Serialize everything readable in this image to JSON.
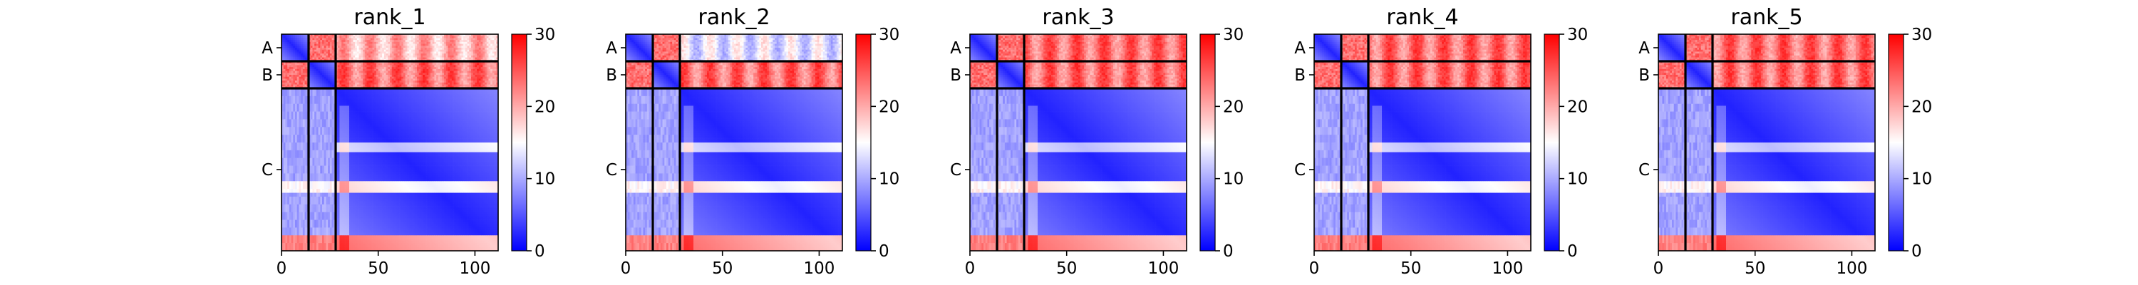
{
  "chart_data": [
    {
      "type": "heatmap",
      "title": "rank_1",
      "xlabel": "",
      "ylabel": "",
      "xlim": [
        0,
        112
      ],
      "x_ticks": [
        0,
        50,
        100
      ],
      "chains": [
        {
          "label": "A",
          "start": 0,
          "end": 14
        },
        {
          "label": "B",
          "start": 14,
          "end": 28
        },
        {
          "label": "C",
          "start": 28,
          "end": 112
        }
      ],
      "colorbar": {
        "min": 0,
        "max": 30,
        "ticks": [
          0,
          10,
          20,
          30
        ],
        "colormap": [
          "#0000ff",
          "#ffffff",
          "#ff0000"
        ]
      }
    },
    {
      "type": "heatmap",
      "title": "rank_2",
      "xlabel": "",
      "ylabel": "",
      "xlim": [
        0,
        112
      ],
      "x_ticks": [
        0,
        50,
        100
      ],
      "chains": [
        {
          "label": "A",
          "start": 0,
          "end": 14
        },
        {
          "label": "B",
          "start": 14,
          "end": 28
        },
        {
          "label": "C",
          "start": 28,
          "end": 112
        }
      ],
      "colorbar": {
        "min": 0,
        "max": 30,
        "ticks": [
          0,
          10,
          20,
          30
        ],
        "colormap": [
          "#0000ff",
          "#ffffff",
          "#ff0000"
        ]
      }
    },
    {
      "type": "heatmap",
      "title": "rank_3",
      "xlabel": "",
      "ylabel": "",
      "xlim": [
        0,
        112
      ],
      "x_ticks": [
        0,
        50,
        100
      ],
      "chains": [
        {
          "label": "A",
          "start": 0,
          "end": 14
        },
        {
          "label": "B",
          "start": 14,
          "end": 28
        },
        {
          "label": "C",
          "start": 28,
          "end": 112
        }
      ],
      "colorbar": {
        "min": 0,
        "max": 30,
        "ticks": [
          0,
          10,
          20,
          30
        ],
        "colormap": [
          "#0000ff",
          "#ffffff",
          "#ff0000"
        ]
      }
    },
    {
      "type": "heatmap",
      "title": "rank_4",
      "xlabel": "",
      "ylabel": "",
      "xlim": [
        0,
        112
      ],
      "x_ticks": [
        0,
        50,
        100
      ],
      "chains": [
        {
          "label": "A",
          "start": 0,
          "end": 14
        },
        {
          "label": "B",
          "start": 14,
          "end": 28
        },
        {
          "label": "C",
          "start": 28,
          "end": 112
        }
      ],
      "colorbar": {
        "min": 0,
        "max": 30,
        "ticks": [
          0,
          10,
          20,
          30
        ],
        "colormap": [
          "#0000ff",
          "#ffffff",
          "#ff0000"
        ]
      }
    },
    {
      "type": "heatmap",
      "title": "rank_5",
      "xlabel": "",
      "ylabel": "",
      "xlim": [
        0,
        112
      ],
      "x_ticks": [
        0,
        50,
        100
      ],
      "chains": [
        {
          "label": "A",
          "start": 0,
          "end": 14
        },
        {
          "label": "B",
          "start": 14,
          "end": 28
        },
        {
          "label": "C",
          "start": 28,
          "end": 112
        }
      ],
      "colorbar": {
        "min": 0,
        "max": 30,
        "ticks": [
          0,
          10,
          20,
          30
        ],
        "colormap": [
          "#0000ff",
          "#ffffff",
          "#ff0000"
        ]
      }
    }
  ]
}
